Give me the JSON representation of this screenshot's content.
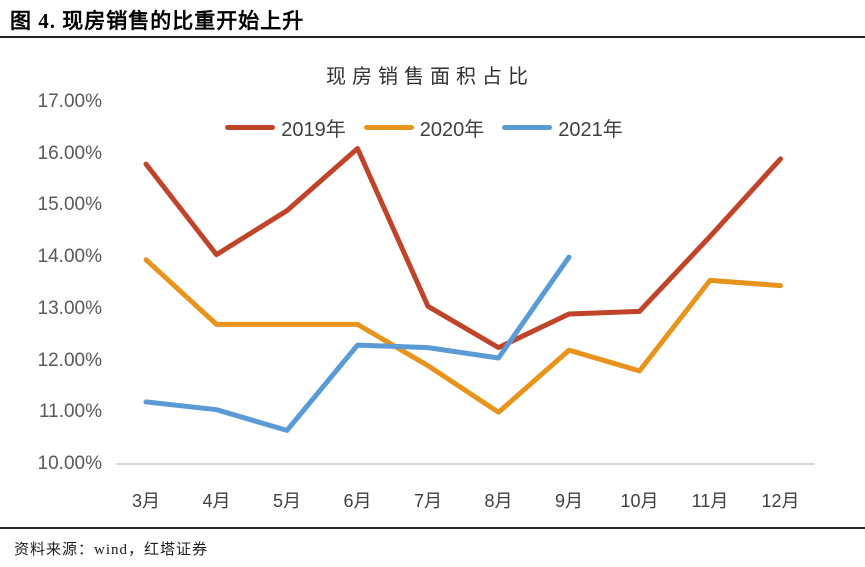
{
  "header": {
    "title": "图 4. 现房销售的比重开始上升"
  },
  "footer": {
    "source": "资料来源：wind，红塔证券"
  },
  "chart_data": {
    "type": "line",
    "title": "现房销售面积占比",
    "categories": [
      "3月",
      "4月",
      "5月",
      "6月",
      "7月",
      "8月",
      "9月",
      "10月",
      "11月",
      "12月"
    ],
    "series": [
      {
        "name": "2019年",
        "color": "#c0442a",
        "values": [
          15.8,
          14.05,
          14.9,
          16.1,
          13.05,
          12.25,
          12.9,
          12.95,
          14.4,
          15.9
        ]
      },
      {
        "name": "2020年",
        "color": "#e8941c",
        "values": [
          13.95,
          12.7,
          12.7,
          12.7,
          11.9,
          11.0,
          12.2,
          11.8,
          13.55,
          13.45
        ]
      },
      {
        "name": "2021年",
        "color": "#5b9bd5",
        "values": [
          11.2,
          11.05,
          10.65,
          12.3,
          12.25,
          12.05,
          14.0,
          null,
          null,
          null
        ]
      }
    ],
    "y_ticks": [
      "17.00%",
      "16.00%",
      "15.00%",
      "14.00%",
      "13.00%",
      "12.00%",
      "11.00%",
      "10.00%"
    ],
    "ylim": [
      10,
      17
    ],
    "xlabel": "",
    "ylabel": "",
    "grid": false,
    "legend_position": "top"
  }
}
